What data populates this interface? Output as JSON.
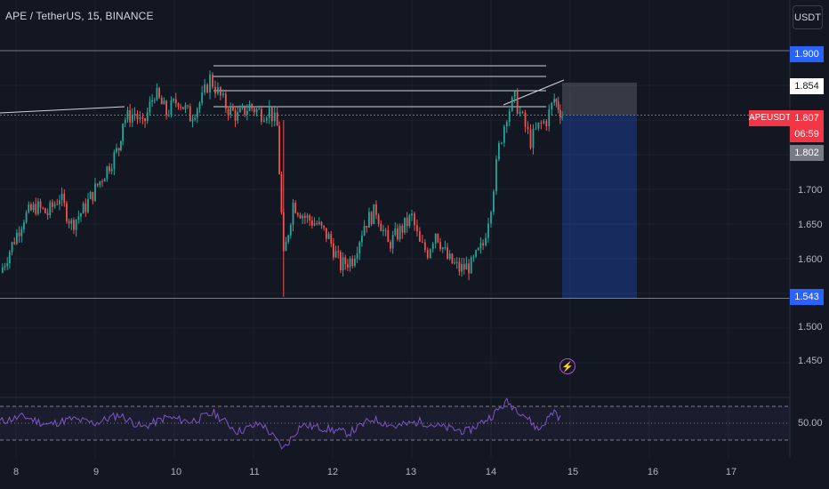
{
  "header": {
    "symbol_title": "APE / TetherUS, 15, BINANCE",
    "currency_button": "USDT"
  },
  "price_axis": {
    "labels": [
      "1.700",
      "1.650",
      "1.600",
      "1.500",
      "1.450",
      "50.00"
    ],
    "marker_target": "1.900",
    "marker_upper": "1.854",
    "marker_current": "1.807",
    "marker_countdown": "06:59",
    "marker_previous": "1.802",
    "marker_stop": "1.543",
    "symbol_tag": "APEUSDT"
  },
  "time_axis": {
    "labels": [
      "8",
      "9",
      "10",
      "11",
      "12",
      "13",
      "14",
      "15",
      "16",
      "17"
    ]
  },
  "colors": {
    "background": "#131722",
    "up_candle": "#26a69a",
    "down_candle": "#ef5350",
    "current_price": "#f23645",
    "position_tag": "#2962ff",
    "rsi_line": "#7e57c2",
    "bolt": "#c455ff"
  },
  "icons": {
    "indicator_alert": "lightning-bolt-icon"
  },
  "chart_data": {
    "type": "candlestick",
    "symbol": "APE / TetherUS",
    "interval": "15",
    "exchange": "BINANCE",
    "x_ticks": [
      "8",
      "9",
      "10",
      "11",
      "12",
      "13",
      "14",
      "15",
      "16",
      "17"
    ],
    "ylim": [
      1.42,
      1.93
    ],
    "y_ticks": [
      1.45,
      1.5,
      1.6,
      1.65,
      1.7
    ],
    "current_price": 1.807,
    "previous_close": 1.802,
    "position": {
      "side": "short",
      "entry": 1.807,
      "stop": 1.854,
      "target": 1.543
    },
    "levels": [
      1.9,
      1.543
    ],
    "price_path": [
      [
        7.8,
        1.58
      ],
      [
        7.95,
        1.62
      ],
      [
        8.1,
        1.66
      ],
      [
        8.25,
        1.675
      ],
      [
        8.4,
        1.665
      ],
      [
        8.55,
        1.69
      ],
      [
        8.7,
        1.65
      ],
      [
        8.85,
        1.67
      ],
      [
        9.0,
        1.7
      ],
      [
        9.15,
        1.73
      ],
      [
        9.3,
        1.76
      ],
      [
        9.35,
        1.8
      ],
      [
        9.5,
        1.81
      ],
      [
        9.6,
        1.79
      ],
      [
        9.75,
        1.84
      ],
      [
        9.9,
        1.81
      ],
      [
        10.05,
        1.83
      ],
      [
        10.2,
        1.805
      ],
      [
        10.35,
        1.83
      ],
      [
        10.45,
        1.86
      ],
      [
        10.55,
        1.84
      ],
      [
        10.65,
        1.82
      ],
      [
        10.8,
        1.805
      ],
      [
        10.95,
        1.82
      ],
      [
        11.1,
        1.81
      ],
      [
        11.2,
        1.815
      ],
      [
        11.3,
        1.79
      ],
      [
        11.38,
        1.6
      ],
      [
        11.5,
        1.68
      ],
      [
        11.65,
        1.66
      ],
      [
        11.8,
        1.65
      ],
      [
        11.95,
        1.63
      ],
      [
        12.1,
        1.59
      ],
      [
        12.25,
        1.6
      ],
      [
        12.4,
        1.65
      ],
      [
        12.55,
        1.67
      ],
      [
        12.7,
        1.62
      ],
      [
        12.85,
        1.64
      ],
      [
        13.0,
        1.66
      ],
      [
        13.1,
        1.62
      ],
      [
        13.2,
        1.61
      ],
      [
        13.3,
        1.64
      ],
      [
        13.45,
        1.6
      ],
      [
        13.6,
        1.585
      ],
      [
        13.75,
        1.59
      ],
      [
        13.9,
        1.62
      ],
      [
        14.0,
        1.68
      ],
      [
        14.1,
        1.76
      ],
      [
        14.2,
        1.81
      ],
      [
        14.3,
        1.83
      ],
      [
        14.4,
        1.8
      ],
      [
        14.5,
        1.77
      ],
      [
        14.6,
        1.79
      ],
      [
        14.7,
        1.8
      ],
      [
        14.8,
        1.83
      ],
      [
        14.85,
        1.82
      ],
      [
        14.9,
        1.807
      ]
    ],
    "rsi": {
      "band_upper": 70,
      "band_lower": 30,
      "mid_label": 50,
      "path": [
        [
          7.8,
          52
        ],
        [
          8.1,
          58
        ],
        [
          8.4,
          48
        ],
        [
          8.7,
          55
        ],
        [
          9.0,
          50
        ],
        [
          9.3,
          60
        ],
        [
          9.6,
          45
        ],
        [
          9.9,
          57
        ],
        [
          10.2,
          52
        ],
        [
          10.5,
          62
        ],
        [
          10.8,
          40
        ],
        [
          11.1,
          50
        ],
        [
          11.38,
          20
        ],
        [
          11.6,
          48
        ],
        [
          11.9,
          44
        ],
        [
          12.2,
          38
        ],
        [
          12.5,
          55
        ],
        [
          12.8,
          46
        ],
        [
          13.1,
          52
        ],
        [
          13.4,
          45
        ],
        [
          13.7,
          40
        ],
        [
          14.0,
          58
        ],
        [
          14.2,
          75
        ],
        [
          14.4,
          62
        ],
        [
          14.6,
          42
        ],
        [
          14.8,
          65
        ],
        [
          14.9,
          52
        ]
      ]
    }
  }
}
